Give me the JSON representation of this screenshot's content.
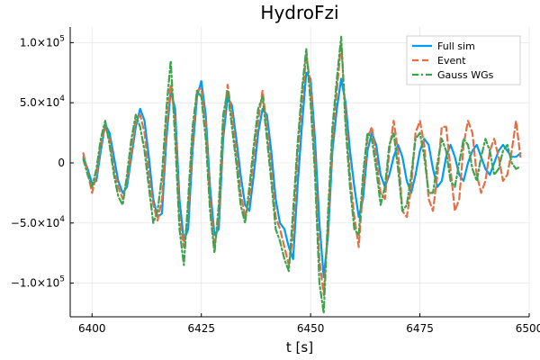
{
  "chart_data": {
    "type": "line",
    "title": "HydroFzi",
    "xlabel": "t [s]",
    "ylabel": "",
    "xlim": [
      6395,
      6500
    ],
    "ylim": [
      -128000,
      113000
    ],
    "grid": true,
    "legend_position": "top-right",
    "x_ticks": [
      {
        "value": 6400,
        "label": "6400"
      },
      {
        "value": 6425,
        "label": "6425"
      },
      {
        "value": 6450,
        "label": "6450"
      },
      {
        "value": 6475,
        "label": "6475"
      },
      {
        "value": 6500,
        "label": "6500"
      }
    ],
    "y_ticks": [
      {
        "value": -100000,
        "mantissa": "−1.0×10",
        "exp": "5"
      },
      {
        "value": -50000,
        "mantissa": "−5.0×10",
        "exp": "4"
      },
      {
        "value": 0,
        "mantissa": "0",
        "exp": ""
      },
      {
        "value": 50000,
        "mantissa": "5.0×10",
        "exp": "4"
      },
      {
        "value": 100000,
        "mantissa": "1.0×10",
        "exp": "5"
      }
    ],
    "series": [
      {
        "name": "Full sim",
        "color": "#009af9",
        "dash": "solid",
        "x": [
          6398,
          6399,
          6400,
          6401,
          6402,
          6403,
          6404,
          6405,
          6406,
          6407,
          6408,
          6409,
          6410,
          6411,
          6412,
          6413,
          6414,
          6415,
          6416,
          6417,
          6418,
          6419,
          6420,
          6421,
          6422,
          6423,
          6424,
          6425,
          6426,
          6427,
          6428,
          6429,
          6430,
          6431,
          6432,
          6433,
          6434,
          6435,
          6436,
          6437,
          6438,
          6439,
          6440,
          6441,
          6442,
          6443,
          6444,
          6445,
          6446,
          6447,
          6448,
          6449,
          6450,
          6451,
          6452,
          6453,
          6454,
          6455,
          6456,
          6457,
          6458,
          6459,
          6460,
          6461,
          6462,
          6463,
          6464,
          6465,
          6466,
          6467,
          6468,
          6469,
          6470,
          6471,
          6472,
          6473,
          6474,
          6475,
          6476,
          6477,
          6478,
          6479,
          6480,
          6481,
          6482,
          6483,
          6484,
          6485,
          6486,
          6487,
          6488,
          6489,
          6490,
          6491,
          6492,
          6493,
          6494,
          6495,
          6496,
          6497,
          6498
        ],
        "y": [
          5000,
          -5000,
          -17000,
          -15000,
          10000,
          32000,
          25000,
          5000,
          -15000,
          -25000,
          -20000,
          5000,
          30000,
          45000,
          35000,
          5000,
          -30000,
          -45000,
          -42000,
          20000,
          60000,
          45000,
          -30000,
          -65000,
          -55000,
          10000,
          55000,
          68000,
          40000,
          -20000,
          -60000,
          -55000,
          20000,
          55000,
          48000,
          20000,
          -10000,
          -35000,
          -40000,
          -10000,
          25000,
          45000,
          40000,
          10000,
          -30000,
          -50000,
          -55000,
          -70000,
          -80000,
          -20000,
          30000,
          75000,
          70000,
          20000,
          -50000,
          -95000,
          -60000,
          10000,
          45000,
          70000,
          50000,
          10000,
          -20000,
          -45000,
          -30000,
          10000,
          25000,
          15000,
          -10000,
          -20000,
          -10000,
          5000,
          15000,
          5000,
          -15000,
          -25000,
          -10000,
          10000,
          20000,
          15000,
          -5000,
          -20000,
          -15000,
          5000,
          15000,
          5000,
          -10000,
          -15000,
          0,
          10000,
          15000,
          5000,
          -5000,
          -10000,
          0,
          10000,
          15000,
          10000,
          5000,
          5000,
          8000
        ]
      },
      {
        "name": "Event",
        "color": "#e26f46",
        "dash": "dashed",
        "x": [
          6398,
          6399,
          6400,
          6401,
          6402,
          6403,
          6404,
          6405,
          6406,
          6407,
          6408,
          6409,
          6410,
          6411,
          6412,
          6413,
          6414,
          6415,
          6416,
          6417,
          6418,
          6419,
          6420,
          6421,
          6422,
          6423,
          6424,
          6425,
          6426,
          6427,
          6428,
          6429,
          6430,
          6431,
          6432,
          6433,
          6434,
          6435,
          6436,
          6437,
          6438,
          6439,
          6440,
          6441,
          6442,
          6443,
          6444,
          6445,
          6446,
          6447,
          6448,
          6449,
          6450,
          6451,
          6452,
          6453,
          6454,
          6455,
          6456,
          6457,
          6458,
          6459,
          6460,
          6461,
          6462,
          6463,
          6464,
          6465,
          6466,
          6467,
          6468,
          6469,
          6470,
          6471,
          6472,
          6473,
          6474,
          6475,
          6476,
          6477,
          6478,
          6479,
          6480,
          6481,
          6482,
          6483,
          6484,
          6485,
          6486,
          6487,
          6488,
          6489,
          6490,
          6491,
          6492,
          6493,
          6494,
          6495,
          6496,
          6497,
          6498
        ],
        "y": [
          8000,
          -8000,
          -25000,
          -10000,
          15000,
          30000,
          20000,
          -5000,
          -20000,
          -30000,
          -15000,
          10000,
          35000,
          40000,
          25000,
          -10000,
          -35000,
          -48000,
          -30000,
          30000,
          65000,
          35000,
          -45000,
          -70000,
          -40000,
          20000,
          60000,
          62000,
          30000,
          -30000,
          -70000,
          -45000,
          30000,
          65000,
          40000,
          10000,
          -25000,
          -45000,
          -30000,
          5000,
          35000,
          60000,
          30000,
          -5000,
          -45000,
          -55000,
          -70000,
          -85000,
          -60000,
          5000,
          50000,
          90000,
          65000,
          0,
          -80000,
          -110000,
          -50000,
          20000,
          60000,
          100000,
          40000,
          -10000,
          -45000,
          -70000,
          -20000,
          20000,
          30000,
          5000,
          -25000,
          -30000,
          10000,
          35000,
          10000,
          -40000,
          -45000,
          -20000,
          25000,
          35000,
          15000,
          -30000,
          -40000,
          -10000,
          30000,
          30000,
          -5000,
          -40000,
          -30000,
          15000,
          35000,
          25000,
          -10000,
          -25000,
          -15000,
          10000,
          20000,
          5000,
          -15000,
          -10000,
          10000,
          35000,
          5000
        ]
      },
      {
        "name": "Gauss WGs",
        "color": "#3da44d",
        "dash": "dashdot",
        "x": [
          6398,
          6399,
          6400,
          6401,
          6402,
          6403,
          6404,
          6405,
          6406,
          6407,
          6408,
          6409,
          6410,
          6411,
          6412,
          6413,
          6414,
          6415,
          6416,
          6417,
          6418,
          6419,
          6420,
          6421,
          6422,
          6423,
          6424,
          6425,
          6426,
          6427,
          6428,
          6429,
          6430,
          6431,
          6432,
          6433,
          6434,
          6435,
          6436,
          6437,
          6438,
          6439,
          6440,
          6441,
          6442,
          6443,
          6444,
          6445,
          6446,
          6447,
          6448,
          6449,
          6450,
          6451,
          6452,
          6453,
          6454,
          6455,
          6456,
          6457,
          6458,
          6459,
          6460,
          6461,
          6462,
          6463,
          6464,
          6465,
          6466,
          6467,
          6468,
          6469,
          6470,
          6471,
          6472,
          6473,
          6474,
          6475,
          6476,
          6477,
          6478,
          6479,
          6480,
          6481,
          6482,
          6483,
          6484,
          6485,
          6486,
          6487,
          6488,
          6489,
          6490,
          6491,
          6492,
          6493,
          6494,
          6495,
          6496,
          6497,
          6498
        ],
        "y": [
          3000,
          -10000,
          -20000,
          -5000,
          20000,
          35000,
          15000,
          -10000,
          -28000,
          -35000,
          -10000,
          20000,
          40000,
          30000,
          10000,
          -20000,
          -50000,
          -40000,
          -10000,
          45000,
          85000,
          20000,
          -55000,
          -85000,
          -30000,
          30000,
          60000,
          55000,
          20000,
          -40000,
          -75000,
          -35000,
          40000,
          60000,
          30000,
          0,
          -35000,
          -50000,
          -20000,
          15000,
          45000,
          55000,
          20000,
          -15000,
          -55000,
          -65000,
          -80000,
          -90000,
          -40000,
          15000,
          60000,
          95000,
          50000,
          -10000,
          -100000,
          -125000,
          -40000,
          30000,
          70000,
          105000,
          30000,
          -20000,
          -55000,
          -60000,
          -10000,
          25000,
          20000,
          -5000,
          -35000,
          -20000,
          15000,
          25000,
          -5000,
          -40000,
          -35000,
          -10000,
          20000,
          25000,
          5000,
          -25000,
          -25000,
          0,
          20000,
          10000,
          -15000,
          -20000,
          0,
          20000,
          15000,
          -5000,
          -15000,
          5000,
          20000,
          10000,
          -10000,
          -5000,
          10000,
          15000,
          0,
          -5000,
          -3000
        ]
      }
    ]
  }
}
